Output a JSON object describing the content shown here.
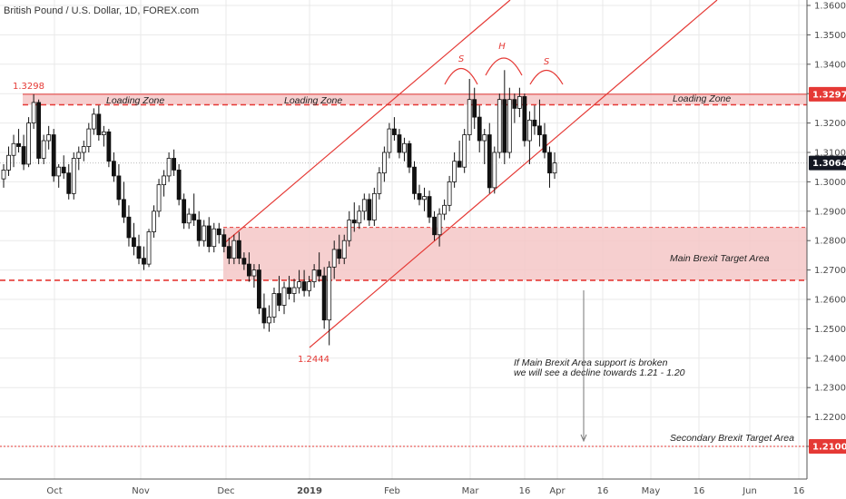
{
  "header": {
    "title": "British Pound / U.S. Dollar, 1D, FOREX.com"
  },
  "colors": {
    "accent": "#e53935",
    "zone_fill": "#f4c7c7",
    "candle": "#111111",
    "grid": "#e9e9e9"
  },
  "chart_data": {
    "type": "candlestick",
    "title": "British Pound / U.S. Dollar, 1D, FOREX.com",
    "y_range": [
      1.195,
      1.365
    ],
    "y_ticks": [
      "1.36000",
      "1.35000",
      "1.34000",
      "1.33000",
      "1.32000",
      "1.31000",
      "1.30000",
      "1.29000",
      "1.28000",
      "1.27000",
      "1.26000",
      "1.25000",
      "1.24000",
      "1.23000",
      "1.22000",
      "1.21000"
    ],
    "x_ticks": [
      "Oct",
      "Nov",
      "Dec",
      "2019",
      "Feb",
      "Mar",
      "16",
      "Apr",
      "16",
      "May",
      "16",
      "Jun",
      "16"
    ],
    "grid": true,
    "price_tags": [
      {
        "label": "1.32978",
        "value": 1.32978,
        "style": "red"
      },
      {
        "label": "1.30641",
        "value": 1.30641,
        "style": "dark"
      },
      {
        "label": "1.21000",
        "value": 1.21,
        "style": "red"
      }
    ],
    "zones": [
      {
        "name": "loading",
        "from": 1.3262,
        "to": 1.3298,
        "labels": [
          "Loading Zone",
          "Loading Zone",
          "Loading Zone"
        ]
      },
      {
        "name": "main",
        "from": 1.2665,
        "to": 1.2845,
        "label": "Main Brexit Target Area"
      }
    ],
    "levels": [
      {
        "label": "1.3298",
        "value": 1.3298
      },
      {
        "label": "1.2444",
        "value": 1.2444
      },
      {
        "label": "Secondary Brexit Target Area",
        "value": 1.21
      }
    ],
    "pattern_labels": [
      "S",
      "H",
      "S"
    ],
    "annotations": [
      "If Main Brexit Area support is broken",
      "we will see a decline towards 1.21 - 1.20"
    ],
    "series": [
      {
        "open": 1.301,
        "high": 1.306,
        "low": 1.298,
        "close": 1.304
      },
      {
        "open": 1.304,
        "high": 1.312,
        "low": 1.302,
        "close": 1.309
      },
      {
        "open": 1.309,
        "high": 1.316,
        "low": 1.305,
        "close": 1.313
      },
      {
        "open": 1.313,
        "high": 1.318,
        "low": 1.31,
        "close": 1.312
      },
      {
        "open": 1.312,
        "high": 1.316,
        "low": 1.304,
        "close": 1.306
      },
      {
        "open": 1.306,
        "high": 1.322,
        "low": 1.305,
        "close": 1.32
      },
      {
        "open": 1.32,
        "high": 1.3298,
        "low": 1.318,
        "close": 1.327
      },
      {
        "open": 1.327,
        "high": 1.328,
        "low": 1.306,
        "close": 1.308
      },
      {
        "open": 1.308,
        "high": 1.316,
        "low": 1.306,
        "close": 1.314
      },
      {
        "open": 1.314,
        "high": 1.319,
        "low": 1.311,
        "close": 1.316
      },
      {
        "open": 1.316,
        "high": 1.318,
        "low": 1.3,
        "close": 1.302
      },
      {
        "open": 1.302,
        "high": 1.306,
        "low": 1.298,
        "close": 1.305
      },
      {
        "open": 1.305,
        "high": 1.309,
        "low": 1.301,
        "close": 1.303
      },
      {
        "open": 1.303,
        "high": 1.306,
        "low": 1.294,
        "close": 1.296
      },
      {
        "open": 1.296,
        "high": 1.31,
        "low": 1.294,
        "close": 1.308
      },
      {
        "open": 1.308,
        "high": 1.312,
        "low": 1.304,
        "close": 1.31
      },
      {
        "open": 1.31,
        "high": 1.314,
        "low": 1.307,
        "close": 1.312
      },
      {
        "open": 1.312,
        "high": 1.32,
        "low": 1.31,
        "close": 1.318
      },
      {
        "open": 1.318,
        "high": 1.325,
        "low": 1.316,
        "close": 1.323
      },
      {
        "open": 1.323,
        "high": 1.326,
        "low": 1.314,
        "close": 1.316
      },
      {
        "open": 1.316,
        "high": 1.319,
        "low": 1.312,
        "close": 1.317
      },
      {
        "open": 1.317,
        "high": 1.318,
        "low": 1.305,
        "close": 1.307
      },
      {
        "open": 1.307,
        "high": 1.31,
        "low": 1.3,
        "close": 1.302
      },
      {
        "open": 1.302,
        "high": 1.306,
        "low": 1.292,
        "close": 1.294
      },
      {
        "open": 1.294,
        "high": 1.3,
        "low": 1.286,
        "close": 1.288
      },
      {
        "open": 1.288,
        "high": 1.292,
        "low": 1.278,
        "close": 1.281
      },
      {
        "open": 1.281,
        "high": 1.286,
        "low": 1.275,
        "close": 1.278
      },
      {
        "open": 1.278,
        "high": 1.282,
        "low": 1.272,
        "close": 1.274
      },
      {
        "open": 1.274,
        "high": 1.278,
        "low": 1.27,
        "close": 1.272
      },
      {
        "open": 1.272,
        "high": 1.284,
        "low": 1.271,
        "close": 1.283
      },
      {
        "open": 1.283,
        "high": 1.292,
        "low": 1.281,
        "close": 1.29
      },
      {
        "open": 1.29,
        "high": 1.301,
        "low": 1.288,
        "close": 1.299
      },
      {
        "open": 1.299,
        "high": 1.304,
        "low": 1.295,
        "close": 1.302
      },
      {
        "open": 1.302,
        "high": 1.31,
        "low": 1.3,
        "close": 1.308
      },
      {
        "open": 1.308,
        "high": 1.311,
        "low": 1.302,
        "close": 1.304
      },
      {
        "open": 1.304,
        "high": 1.306,
        "low": 1.292,
        "close": 1.294
      },
      {
        "open": 1.294,
        "high": 1.296,
        "low": 1.284,
        "close": 1.286
      },
      {
        "open": 1.286,
        "high": 1.291,
        "low": 1.284,
        "close": 1.289
      },
      {
        "open": 1.289,
        "high": 1.296,
        "low": 1.285,
        "close": 1.287
      },
      {
        "open": 1.287,
        "high": 1.29,
        "low": 1.278,
        "close": 1.28
      },
      {
        "open": 1.28,
        "high": 1.287,
        "low": 1.278,
        "close": 1.285
      },
      {
        "open": 1.285,
        "high": 1.288,
        "low": 1.276,
        "close": 1.278
      },
      {
        "open": 1.278,
        "high": 1.286,
        "low": 1.276,
        "close": 1.284
      },
      {
        "open": 1.284,
        "high": 1.286,
        "low": 1.279,
        "close": 1.282
      },
      {
        "open": 1.282,
        "high": 1.284,
        "low": 1.276,
        "close": 1.278
      },
      {
        "open": 1.278,
        "high": 1.281,
        "low": 1.272,
        "close": 1.274
      },
      {
        "open": 1.274,
        "high": 1.282,
        "low": 1.272,
        "close": 1.28
      },
      {
        "open": 1.28,
        "high": 1.283,
        "low": 1.272,
        "close": 1.274
      },
      {
        "open": 1.274,
        "high": 1.276,
        "low": 1.27,
        "close": 1.272
      },
      {
        "open": 1.272,
        "high": 1.276,
        "low": 1.266,
        "close": 1.268
      },
      {
        "open": 1.268,
        "high": 1.272,
        "low": 1.264,
        "close": 1.27
      },
      {
        "open": 1.27,
        "high": 1.272,
        "low": 1.255,
        "close": 1.257
      },
      {
        "open": 1.257,
        "high": 1.262,
        "low": 1.25,
        "close": 1.252
      },
      {
        "open": 1.252,
        "high": 1.258,
        "low": 1.249,
        "close": 1.254
      },
      {
        "open": 1.254,
        "high": 1.264,
        "low": 1.252,
        "close": 1.262
      },
      {
        "open": 1.262,
        "high": 1.268,
        "low": 1.256,
        "close": 1.258
      },
      {
        "open": 1.258,
        "high": 1.266,
        "low": 1.255,
        "close": 1.264
      },
      {
        "open": 1.264,
        "high": 1.268,
        "low": 1.26,
        "close": 1.262
      },
      {
        "open": 1.262,
        "high": 1.267,
        "low": 1.259,
        "close": 1.264
      },
      {
        "open": 1.264,
        "high": 1.27,
        "low": 1.262,
        "close": 1.266
      },
      {
        "open": 1.266,
        "high": 1.27,
        "low": 1.261,
        "close": 1.263
      },
      {
        "open": 1.263,
        "high": 1.268,
        "low": 1.261,
        "close": 1.266
      },
      {
        "open": 1.266,
        "high": 1.272,
        "low": 1.264,
        "close": 1.27
      },
      {
        "open": 1.27,
        "high": 1.276,
        "low": 1.266,
        "close": 1.268
      },
      {
        "open": 1.268,
        "high": 1.271,
        "low": 1.25,
        "close": 1.253
      },
      {
        "open": 1.253,
        "high": 1.273,
        "low": 1.2444,
        "close": 1.271
      },
      {
        "open": 1.271,
        "high": 1.28,
        "low": 1.267,
        "close": 1.277
      },
      {
        "open": 1.277,
        "high": 1.282,
        "low": 1.272,
        "close": 1.274
      },
      {
        "open": 1.274,
        "high": 1.282,
        "low": 1.272,
        "close": 1.28
      },
      {
        "open": 1.28,
        "high": 1.29,
        "low": 1.278,
        "close": 1.287
      },
      {
        "open": 1.287,
        "high": 1.293,
        "low": 1.283,
        "close": 1.286
      },
      {
        "open": 1.286,
        "high": 1.292,
        "low": 1.284,
        "close": 1.29
      },
      {
        "open": 1.29,
        "high": 1.296,
        "low": 1.287,
        "close": 1.294
      },
      {
        "open": 1.294,
        "high": 1.296,
        "low": 1.285,
        "close": 1.287
      },
      {
        "open": 1.287,
        "high": 1.298,
        "low": 1.285,
        "close": 1.296
      },
      {
        "open": 1.296,
        "high": 1.305,
        "low": 1.294,
        "close": 1.303
      },
      {
        "open": 1.303,
        "high": 1.312,
        "low": 1.3,
        "close": 1.31
      },
      {
        "open": 1.31,
        "high": 1.32,
        "low": 1.308,
        "close": 1.318
      },
      {
        "open": 1.318,
        "high": 1.322,
        "low": 1.314,
        "close": 1.316
      },
      {
        "open": 1.316,
        "high": 1.318,
        "low": 1.308,
        "close": 1.31
      },
      {
        "open": 1.31,
        "high": 1.315,
        "low": 1.307,
        "close": 1.313
      },
      {
        "open": 1.313,
        "high": 1.314,
        "low": 1.303,
        "close": 1.305
      },
      {
        "open": 1.305,
        "high": 1.307,
        "low": 1.294,
        "close": 1.296
      },
      {
        "open": 1.296,
        "high": 1.299,
        "low": 1.292,
        "close": 1.294
      },
      {
        "open": 1.294,
        "high": 1.298,
        "low": 1.29,
        "close": 1.295
      },
      {
        "open": 1.295,
        "high": 1.297,
        "low": 1.286,
        "close": 1.288
      },
      {
        "open": 1.288,
        "high": 1.29,
        "low": 1.28,
        "close": 1.282
      },
      {
        "open": 1.282,
        "high": 1.291,
        "low": 1.278,
        "close": 1.289
      },
      {
        "open": 1.289,
        "high": 1.294,
        "low": 1.287,
        "close": 1.292
      },
      {
        "open": 1.292,
        "high": 1.302,
        "low": 1.29,
        "close": 1.3
      },
      {
        "open": 1.3,
        "high": 1.31,
        "low": 1.298,
        "close": 1.307
      },
      {
        "open": 1.307,
        "high": 1.314,
        "low": 1.305,
        "close": 1.305
      },
      {
        "open": 1.305,
        "high": 1.318,
        "low": 1.303,
        "close": 1.316
      },
      {
        "open": 1.316,
        "high": 1.335,
        "low": 1.314,
        "close": 1.328
      },
      {
        "open": 1.328,
        "high": 1.332,
        "low": 1.318,
        "close": 1.322
      },
      {
        "open": 1.322,
        "high": 1.326,
        "low": 1.31,
        "close": 1.314
      },
      {
        "open": 1.314,
        "high": 1.318,
        "low": 1.306,
        "close": 1.316
      },
      {
        "open": 1.316,
        "high": 1.32,
        "low": 1.296,
        "close": 1.298
      },
      {
        "open": 1.298,
        "high": 1.312,
        "low": 1.296,
        "close": 1.31
      },
      {
        "open": 1.31,
        "high": 1.33,
        "low": 1.308,
        "close": 1.328
      },
      {
        "open": 1.328,
        "high": 1.338,
        "low": 1.306,
        "close": 1.31
      },
      {
        "open": 1.31,
        "high": 1.332,
        "low": 1.308,
        "close": 1.328
      },
      {
        "open": 1.328,
        "high": 1.33,
        "low": 1.32,
        "close": 1.325
      },
      {
        "open": 1.325,
        "high": 1.332,
        "low": 1.322,
        "close": 1.329
      },
      {
        "open": 1.329,
        "high": 1.33,
        "low": 1.312,
        "close": 1.314
      },
      {
        "open": 1.314,
        "high": 1.324,
        "low": 1.306,
        "close": 1.321
      },
      {
        "open": 1.321,
        "high": 1.326,
        "low": 1.316,
        "close": 1.319
      },
      {
        "open": 1.319,
        "high": 1.328,
        "low": 1.312,
        "close": 1.316
      },
      {
        "open": 1.316,
        "high": 1.32,
        "low": 1.308,
        "close": 1.31
      },
      {
        "open": 1.31,
        "high": 1.312,
        "low": 1.298,
        "close": 1.303
      },
      {
        "open": 1.303,
        "high": 1.31,
        "low": 1.301,
        "close": 1.30641
      }
    ]
  }
}
